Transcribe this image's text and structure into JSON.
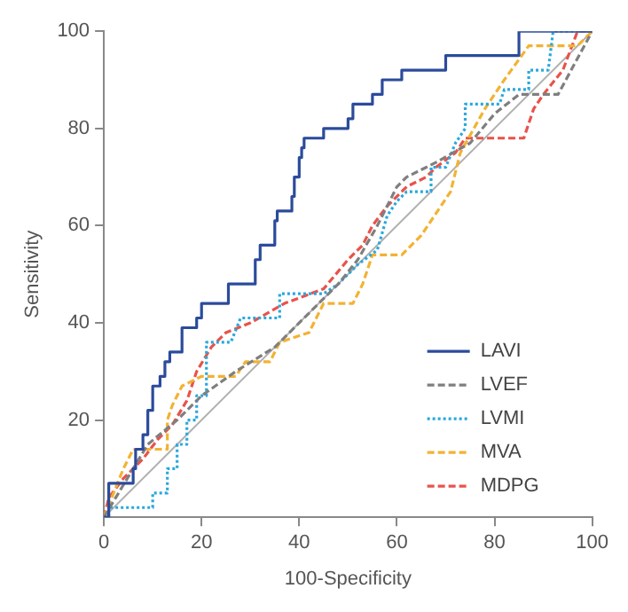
{
  "chart_data": {
    "type": "line",
    "xlabel": "100-Specificity",
    "ylabel": "Sensitivity",
    "xlim": [
      0,
      100
    ],
    "ylim": [
      0,
      100
    ],
    "xticks": [
      0,
      20,
      40,
      60,
      80,
      100
    ],
    "yticks": [
      20,
      40,
      60,
      80,
      100
    ],
    "grid": false,
    "legend": "bottom right",
    "marker": "none",
    "series": [
      {
        "name": "LAVI",
        "color": "#2b4b9b",
        "line_style": "solid",
        "x": [
          0,
          1,
          1,
          6,
          6,
          6.5,
          6.5,
          8,
          8,
          9,
          9,
          10,
          10,
          11.5,
          11.5,
          12.5,
          12.5,
          13.5,
          13.5,
          16,
          16,
          19,
          19,
          20,
          20,
          25.5,
          25.5,
          31,
          31,
          32,
          32,
          35,
          35,
          35.5,
          35.5,
          38.5,
          38.5,
          39,
          39,
          40,
          40,
          40.5,
          40.5,
          41,
          41,
          45,
          45,
          50,
          50,
          51,
          51,
          55,
          55,
          57,
          57,
          61,
          61,
          70,
          70,
          85,
          85,
          100
        ],
        "values": [
          0,
          0,
          7,
          7,
          10,
          10,
          14,
          14,
          17,
          17,
          22,
          22,
          27,
          27,
          29,
          29,
          32,
          32,
          34,
          34,
          39,
          39,
          41,
          41,
          44,
          44,
          48,
          48,
          53,
          53,
          56,
          56,
          61,
          61,
          63,
          63,
          66,
          66,
          70,
          70,
          74,
          74,
          76,
          76,
          78,
          78,
          80,
          80,
          82,
          82,
          85,
          85,
          87,
          87,
          90,
          90,
          92,
          92,
          95,
          95,
          100,
          100
        ]
      },
      {
        "name": "LVEF",
        "color": "#7f7f7f",
        "line_style": "dashed",
        "x": [
          0,
          3,
          6,
          9,
          15,
          20,
          27,
          35,
          42,
          48,
          52,
          56,
          60,
          62,
          68,
          75,
          80,
          85,
          93,
          100
        ],
        "values": [
          0,
          5,
          10,
          15,
          20,
          25,
          30,
          35,
          42,
          48,
          53,
          60,
          68,
          70,
          73,
          77,
          83,
          87,
          87,
          100
        ]
      },
      {
        "name": "LVMI",
        "color": "#29a8dd",
        "line_style": "dotted",
        "x": [
          0,
          1,
          1,
          10,
          10,
          13,
          13,
          15,
          15,
          17,
          17,
          19,
          19,
          21,
          21,
          26,
          28,
          36,
          36,
          45,
          48,
          52,
          56,
          58,
          60,
          62,
          67,
          67,
          70,
          72,
          74,
          74,
          81,
          82,
          87,
          87,
          91,
          92,
          100
        ],
        "values": [
          0,
          0,
          2,
          2,
          5,
          5,
          10,
          10,
          15,
          15,
          20,
          20,
          25,
          25,
          36,
          36,
          41,
          41,
          46,
          46,
          48,
          52,
          55,
          62,
          65,
          67,
          67,
          72,
          72,
          77,
          80,
          85,
          85,
          88,
          88,
          92,
          92,
          100,
          100
        ]
      },
      {
        "name": "MVA",
        "color": "#f2b233",
        "line_style": "dashed",
        "x": [
          0,
          2,
          4,
          6,
          13,
          13,
          14,
          16,
          20,
          27,
          29,
          34,
          36,
          42,
          45,
          51,
          53,
          55,
          61,
          65,
          71,
          73,
          78,
          82,
          87,
          97,
          100
        ],
        "values": [
          0,
          5,
          10,
          14,
          14,
          20,
          23,
          27,
          29,
          29,
          32,
          32,
          36,
          38,
          44,
          44,
          48,
          54,
          54,
          58,
          67,
          75,
          84,
          90,
          97,
          97,
          100
        ]
      },
      {
        "name": "MDPG",
        "color": "#e8534b",
        "line_style": "dashed",
        "x": [
          0,
          1,
          4,
          8,
          11,
          14,
          17,
          19,
          22,
          25,
          30,
          37,
          45,
          50,
          53,
          55,
          58,
          62,
          66,
          68,
          72,
          74,
          86,
          88,
          90,
          94,
          97,
          100
        ],
        "values": [
          0,
          4,
          8,
          12,
          16,
          19,
          24,
          30,
          35,
          38,
          40,
          44,
          47,
          53,
          56,
          60,
          64,
          68,
          70,
          72,
          75,
          78,
          78,
          84,
          87,
          92,
          100,
          100
        ]
      },
      {
        "color": "#b0b0b0",
        "line_style": "solid",
        "x": [
          0,
          100
        ],
        "values": [
          0,
          100
        ]
      }
    ]
  }
}
